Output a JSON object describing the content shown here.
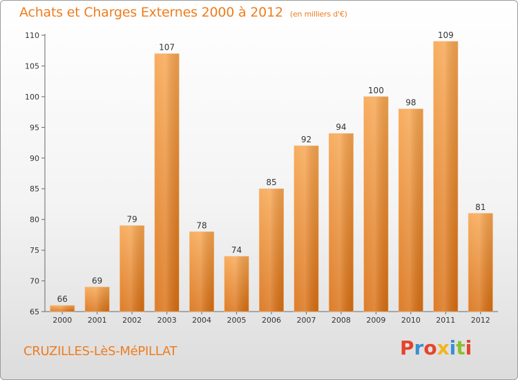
{
  "header": {
    "title": "Achats et Charges Externes 2000 à 2012",
    "subtitle": "(en milliers d'€)"
  },
  "footer": {
    "location": "CRUZILLES-LèS-MéPILLAT",
    "brand_letters": [
      "P",
      "r",
      "o",
      "x",
      "i",
      "t",
      "i"
    ],
    "brand_colors": [
      "#e5432a",
      "#3b8fd0",
      "#e5432a",
      "#f2b51c",
      "#3b8fd0",
      "#8cbf2e",
      "#e5432a"
    ]
  },
  "chart_data": {
    "type": "bar",
    "title": "Achats et Charges Externes 2000 à 2012",
    "subtitle": "(en milliers d'€)",
    "categories": [
      "2000",
      "2001",
      "2002",
      "2003",
      "2004",
      "2005",
      "2006",
      "2007",
      "2008",
      "2009",
      "2010",
      "2011",
      "2012"
    ],
    "values": [
      66,
      69,
      79,
      107,
      78,
      74,
      85,
      92,
      94,
      100,
      98,
      109,
      81
    ],
    "ylim": [
      65,
      110
    ],
    "yticks": [
      65,
      70,
      75,
      80,
      85,
      90,
      95,
      100,
      105,
      110
    ],
    "grid": false,
    "bar_color_top": "#f7a54f",
    "bar_color_bottom": "#d96f12"
  }
}
